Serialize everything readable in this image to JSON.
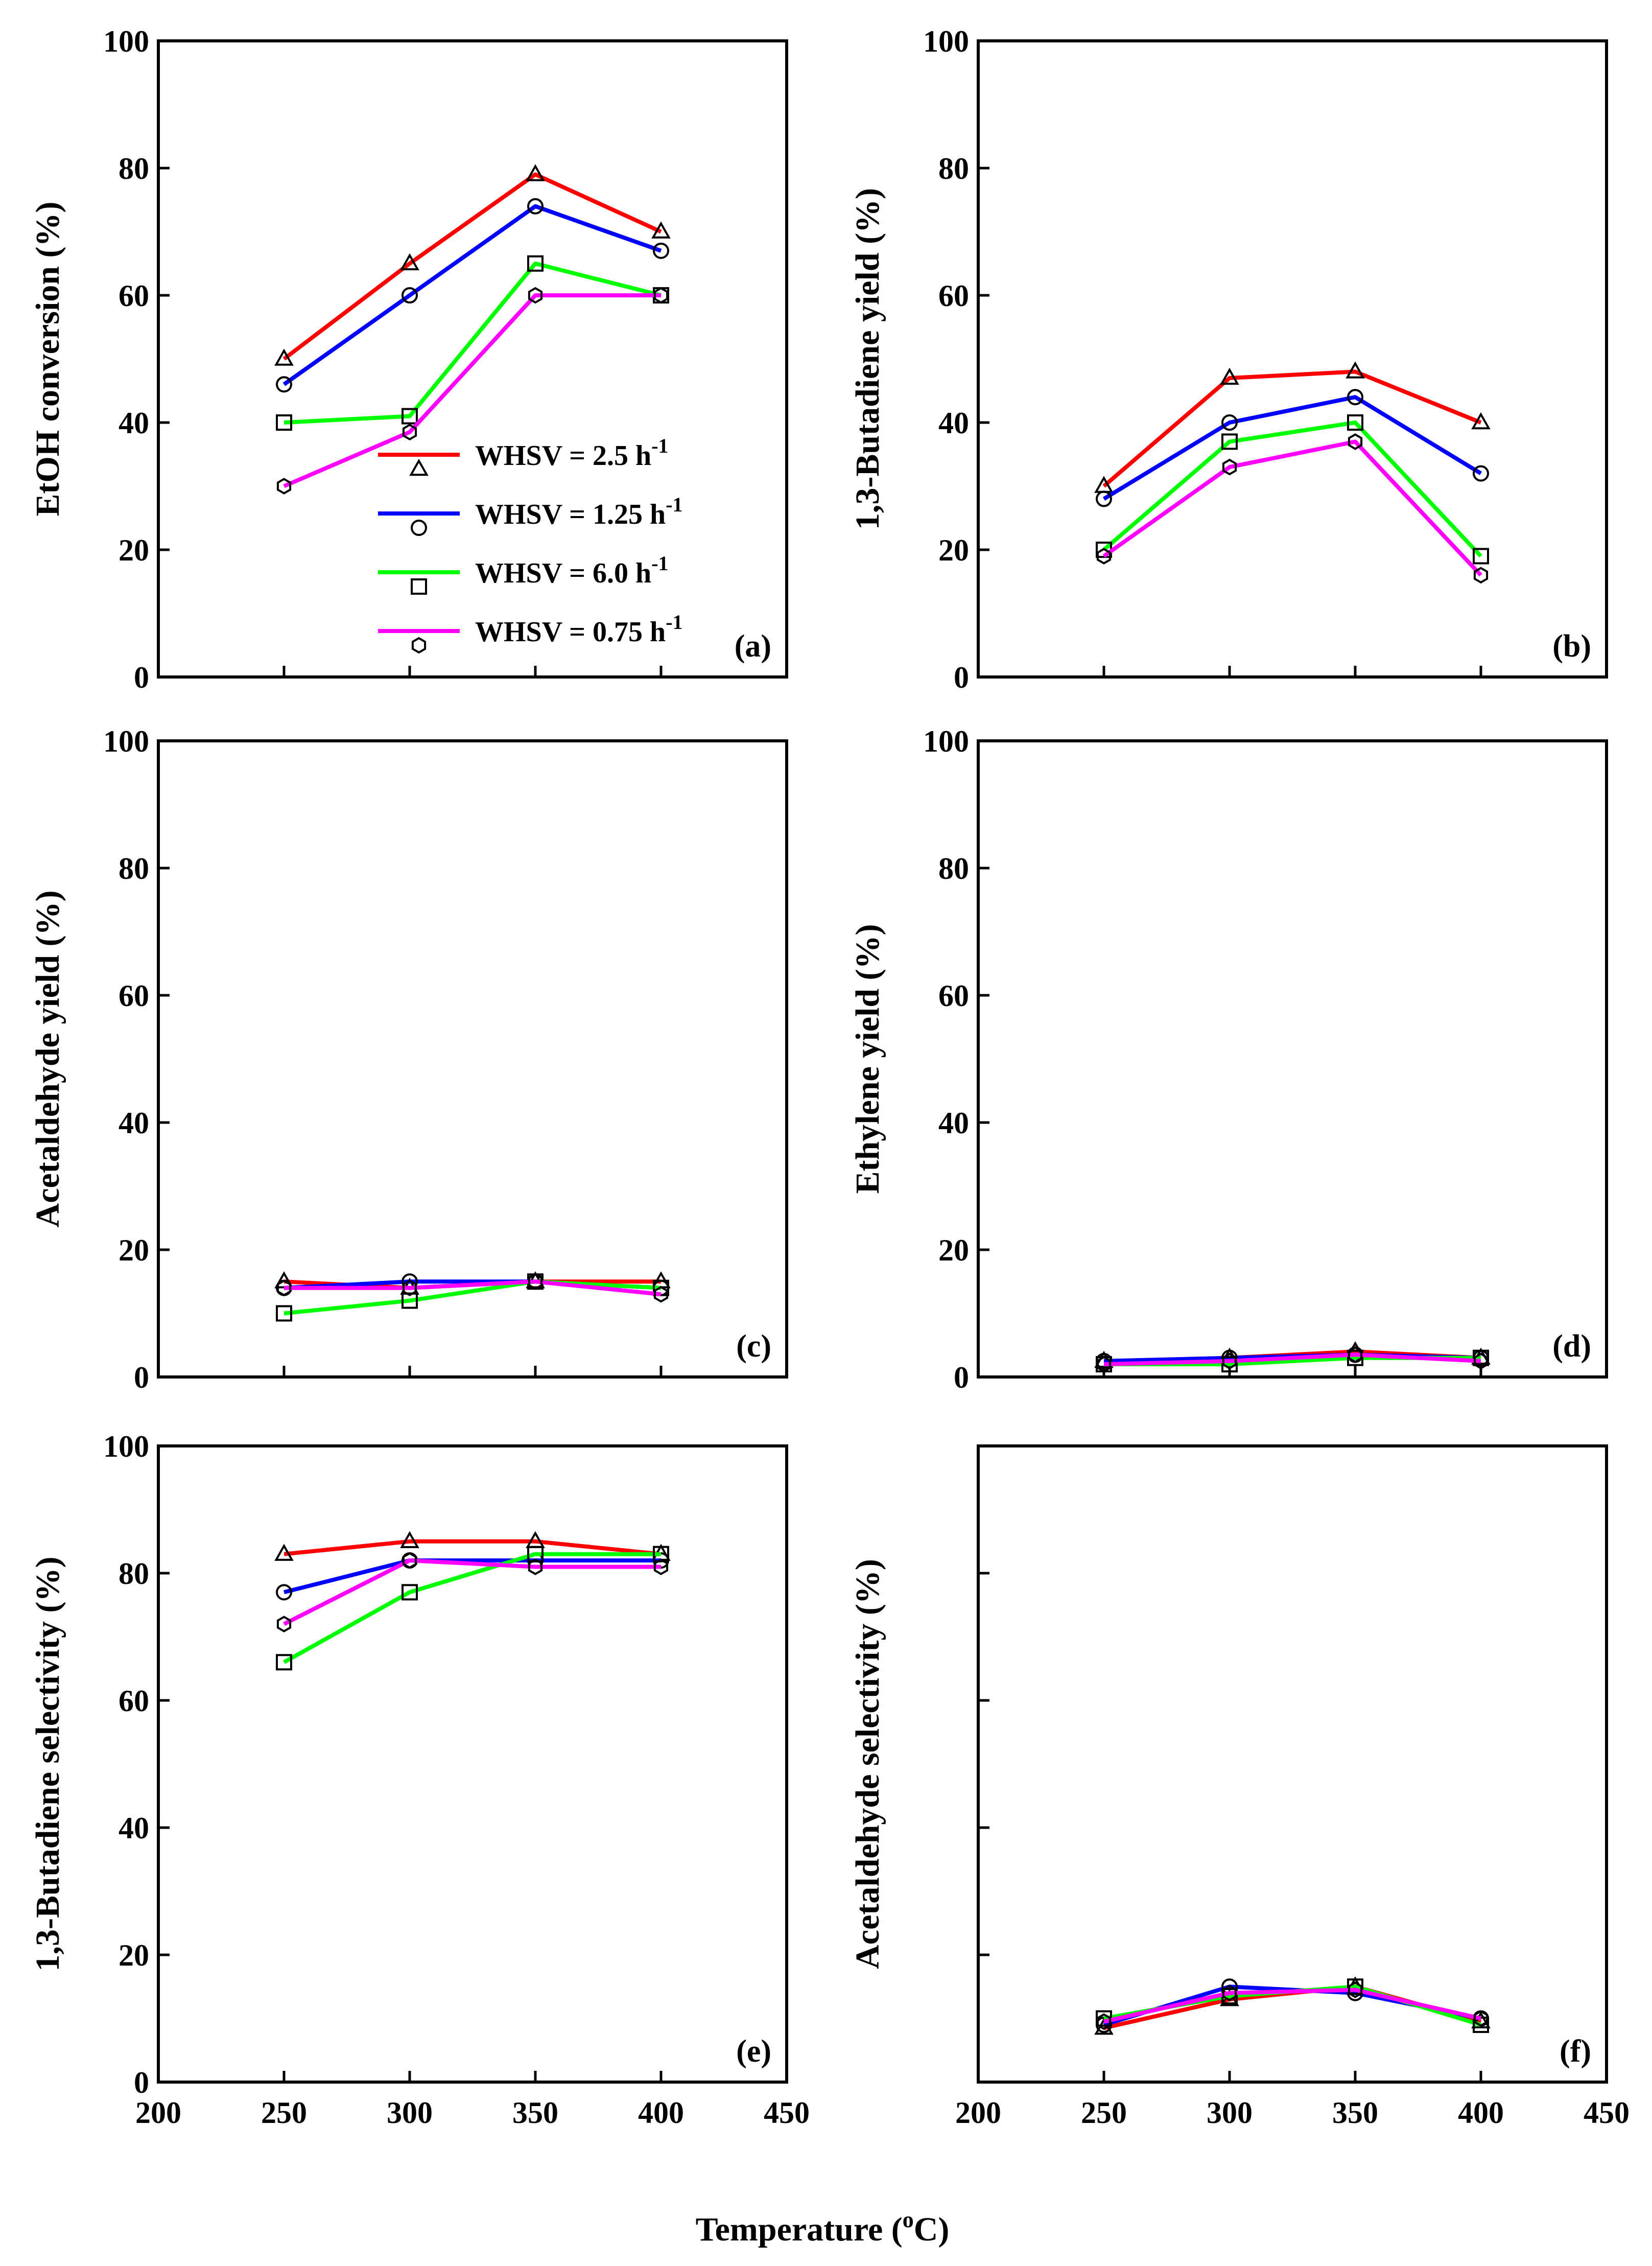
{
  "figure": {
    "x_axis_title": "Temperature (",
    "x_axis_title_sup": "o",
    "x_axis_title_end": "C)"
  },
  "legend": [
    {
      "label": "WHSV = 2.5 h",
      "sup": "-1",
      "color": "#ff0000",
      "marker": "triangle"
    },
    {
      "label": "WHSV = 1.25 h",
      "sup": "-1",
      "color": "#0000ff",
      "marker": "circle"
    },
    {
      "label": "WHSV = 6.0 h",
      "sup": "-1",
      "color": "#00ff00",
      "marker": "square"
    },
    {
      "label": "WHSV = 0.75 h",
      "sup": "-1",
      "color": "#ff00ff",
      "marker": "hexagon"
    }
  ],
  "chart_data": [
    {
      "id": "a",
      "type": "line",
      "panel_label": "(a)",
      "ylabel": "EtOH conversion (%)",
      "xlim": [
        200,
        450
      ],
      "ylim": [
        0,
        100
      ],
      "yticks": [
        0,
        20,
        40,
        60,
        80,
        100
      ],
      "show_ytick_labels": true,
      "show_xtick_labels": false,
      "x": [
        250,
        300,
        350,
        400
      ],
      "series": [
        {
          "name": "WHSV = 2.5 h-1",
          "color": "#ff0000",
          "marker": "triangle",
          "values": [
            50,
            65,
            79,
            70
          ]
        },
        {
          "name": "WHSV = 1.25 h-1",
          "color": "#0000ff",
          "marker": "circle",
          "values": [
            46,
            60,
            74,
            67
          ]
        },
        {
          "name": "WHSV = 6.0 h-1",
          "color": "#00ff00",
          "marker": "square",
          "values": [
            40,
            41,
            65,
            60
          ]
        },
        {
          "name": "WHSV = 0.75 h-1",
          "color": "#ff00ff",
          "marker": "hexagon",
          "values": [
            30,
            38.5,
            60,
            60
          ]
        }
      ]
    },
    {
      "id": "b",
      "type": "line",
      "panel_label": "(b)",
      "ylabel": "1,3-Butadiene yield (%)",
      "xlim": [
        200,
        450
      ],
      "ylim": [
        0,
        100
      ],
      "yticks": [
        0,
        20,
        40,
        60,
        80,
        100
      ],
      "show_ytick_labels": true,
      "show_xtick_labels": false,
      "x": [
        250,
        300,
        350,
        400
      ],
      "series": [
        {
          "name": "WHSV = 2.5 h-1",
          "color": "#ff0000",
          "marker": "triangle",
          "values": [
            30,
            47,
            48,
            40
          ]
        },
        {
          "name": "WHSV = 1.25 h-1",
          "color": "#0000ff",
          "marker": "circle",
          "values": [
            28,
            40,
            44,
            32
          ]
        },
        {
          "name": "WHSV = 6.0 h-1",
          "color": "#00ff00",
          "marker": "square",
          "values": [
            20,
            37,
            40,
            19
          ]
        },
        {
          "name": "WHSV = 0.75 h-1",
          "color": "#ff00ff",
          "marker": "hexagon",
          "values": [
            19,
            33,
            37,
            16
          ]
        }
      ]
    },
    {
      "id": "c",
      "type": "line",
      "panel_label": "(c)",
      "ylabel": "Acetaldehyde yield (%)",
      "xlim": [
        200,
        450
      ],
      "ylim": [
        0,
        100
      ],
      "yticks": [
        0,
        20,
        40,
        60,
        80,
        100
      ],
      "show_ytick_labels": true,
      "show_xtick_labels": false,
      "x": [
        250,
        300,
        350,
        400
      ],
      "series": [
        {
          "name": "WHSV = 2.5 h-1",
          "color": "#ff0000",
          "marker": "triangle",
          "values": [
            15,
            14,
            15,
            15
          ]
        },
        {
          "name": "WHSV = 1.25 h-1",
          "color": "#0000ff",
          "marker": "circle",
          "values": [
            14,
            15,
            15,
            14
          ]
        },
        {
          "name": "WHSV = 6.0 h-1",
          "color": "#00ff00",
          "marker": "square",
          "values": [
            10,
            12,
            15,
            14
          ]
        },
        {
          "name": "WHSV = 0.75 h-1",
          "color": "#ff00ff",
          "marker": "hexagon",
          "values": [
            14,
            14,
            15,
            13
          ]
        }
      ]
    },
    {
      "id": "d",
      "type": "line",
      "panel_label": "(d)",
      "ylabel": "Ethylene yield (%)",
      "xlim": [
        200,
        450
      ],
      "ylim": [
        0,
        100
      ],
      "yticks": [
        0,
        20,
        40,
        60,
        80,
        100
      ],
      "show_ytick_labels": true,
      "show_xtick_labels": false,
      "x": [
        250,
        300,
        350,
        400
      ],
      "series": [
        {
          "name": "WHSV = 2.5 h-1",
          "color": "#ff0000",
          "marker": "triangle",
          "values": [
            2.5,
            3,
            4,
            3
          ]
        },
        {
          "name": "WHSV = 1.25 h-1",
          "color": "#0000ff",
          "marker": "circle",
          "values": [
            2.5,
            3,
            3.5,
            3
          ]
        },
        {
          "name": "WHSV = 6.0 h-1",
          "color": "#00ff00",
          "marker": "square",
          "values": [
            2,
            2,
            3,
            3
          ]
        },
        {
          "name": "WHSV = 0.75 h-1",
          "color": "#ff00ff",
          "marker": "hexagon",
          "values": [
            2,
            2.5,
            3.5,
            2.5
          ]
        }
      ]
    },
    {
      "id": "e",
      "type": "line",
      "panel_label": "(e)",
      "ylabel": "1,3-Butadiene selectivity (%)",
      "xlim": [
        200,
        450
      ],
      "ylim": [
        0,
        100
      ],
      "yticks": [
        0,
        20,
        40,
        60,
        80,
        100
      ],
      "show_ytick_labels": true,
      "show_xtick_labels": true,
      "x": [
        250,
        300,
        350,
        400
      ],
      "series": [
        {
          "name": "WHSV = 2.5 h-1",
          "color": "#ff0000",
          "marker": "triangle",
          "values": [
            83,
            85,
            85,
            83
          ]
        },
        {
          "name": "WHSV = 1.25 h-1",
          "color": "#0000ff",
          "marker": "circle",
          "values": [
            77,
            82,
            82,
            82
          ]
        },
        {
          "name": "WHSV = 6.0 h-1",
          "color": "#00ff00",
          "marker": "square",
          "values": [
            66,
            77,
            83,
            83
          ]
        },
        {
          "name": "WHSV = 0.75 h-1",
          "color": "#ff00ff",
          "marker": "hexagon",
          "values": [
            72,
            82,
            81,
            81
          ]
        }
      ]
    },
    {
      "id": "f",
      "type": "line",
      "panel_label": "(f)",
      "ylabel": "Acetaldehyde selectivity (%)",
      "xlim": [
        200,
        450
      ],
      "ylim": [
        0,
        100
      ],
      "yticks": [
        0,
        20,
        40,
        60,
        80,
        100
      ],
      "show_ytick_labels": false,
      "show_xtick_labels": true,
      "x": [
        250,
        300,
        350,
        400
      ],
      "series": [
        {
          "name": "WHSV = 2.5 h-1",
          "color": "#ff0000",
          "marker": "triangle",
          "values": [
            8.5,
            13,
            15,
            9.5
          ]
        },
        {
          "name": "WHSV = 1.25 h-1",
          "color": "#0000ff",
          "marker": "circle",
          "values": [
            9,
            15,
            14,
            10
          ]
        },
        {
          "name": "WHSV = 6.0 h-1",
          "color": "#00ff00",
          "marker": "square",
          "values": [
            10,
            13.5,
            15,
            9
          ]
        },
        {
          "name": "WHSV = 0.75 h-1",
          "color": "#ff00ff",
          "marker": "hexagon",
          "values": [
            9.5,
            14,
            14.5,
            10
          ]
        }
      ]
    }
  ],
  "xticks": [
    200,
    250,
    300,
    350,
    400,
    450
  ]
}
